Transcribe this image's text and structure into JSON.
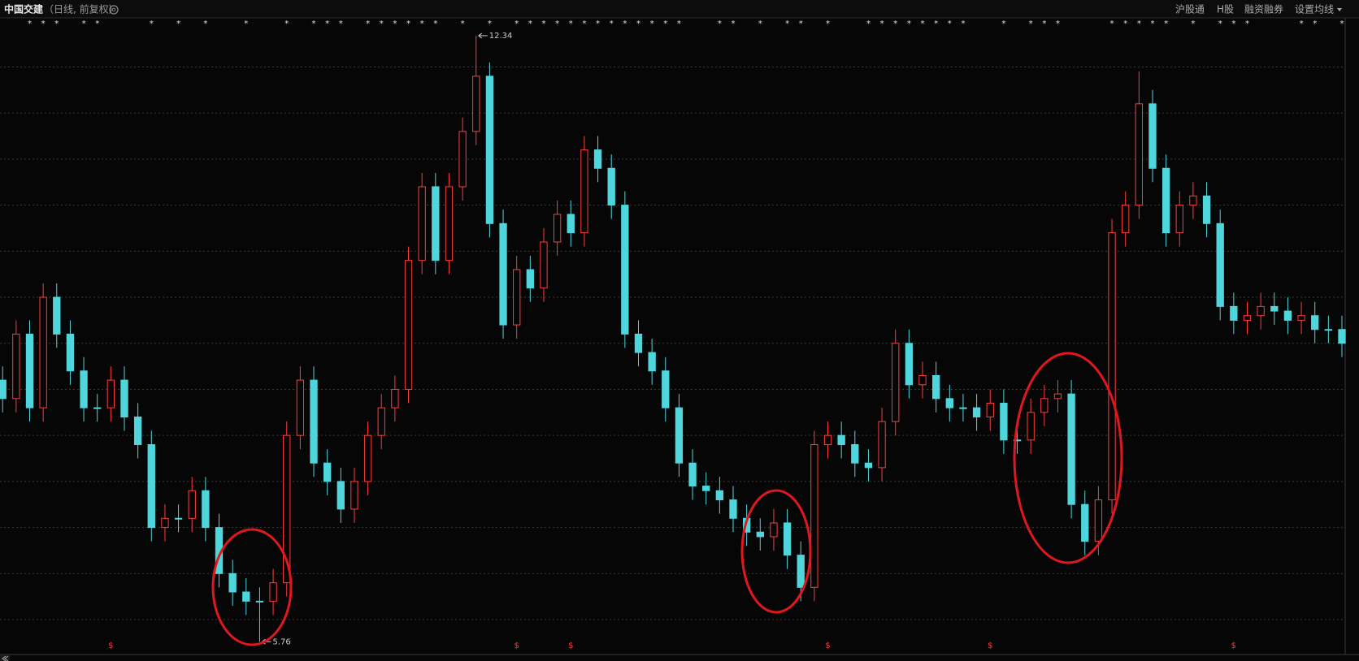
{
  "header": {
    "title": "中国交建",
    "subtitle": "（日线, 前复权）",
    "menu": [
      "沪股通",
      "H股",
      "融资融券",
      "设置均线"
    ]
  },
  "chart_data": {
    "type": "candlestick",
    "open": [
      8.6,
      8.4,
      9.1,
      8.3,
      9.5,
      9.1,
      8.7,
      8.3,
      8.3,
      8.6,
      8.2,
      7.9,
      7.0,
      7.1,
      7.1,
      7.4,
      7.0,
      6.5,
      6.3,
      6.2,
      6.2,
      6.4,
      8.0,
      8.6,
      7.7,
      7.5,
      7.2,
      7.5,
      8.0,
      8.3,
      8.5,
      9.9,
      10.7,
      9.9,
      10.7,
      11.3,
      11.9,
      10.3,
      9.2,
      9.8,
      9.6,
      10.1,
      10.4,
      10.2,
      11.1,
      10.9,
      10.5,
      9.1,
      8.9,
      8.7,
      8.3,
      7.7,
      7.45,
      7.4,
      7.3,
      7.1,
      6.95,
      6.9,
      7.05,
      6.7,
      6.35,
      7.9,
      8.0,
      7.9,
      7.7,
      7.65,
      8.15,
      9.0,
      8.55,
      8.65,
      8.4,
      8.3,
      8.3,
      8.2,
      8.35,
      7.95,
      7.95,
      8.25,
      8.4,
      8.45,
      7.25,
      6.85,
      7.3,
      10.2,
      10.5,
      11.6,
      10.9,
      10.2,
      10.5,
      10.6,
      10.3,
      9.4,
      9.25,
      9.3,
      9.4,
      9.35,
      9.25,
      9.3,
      9.15,
      9.15
    ],
    "high": [
      8.75,
      9.25,
      9.25,
      9.65,
      9.65,
      9.25,
      8.85,
      8.45,
      8.75,
      8.75,
      8.35,
      8.05,
      7.25,
      7.25,
      7.55,
      7.55,
      7.15,
      6.65,
      6.45,
      6.35,
      6.55,
      8.15,
      8.75,
      8.75,
      7.85,
      7.65,
      7.65,
      8.15,
      8.45,
      8.65,
      10.05,
      10.85,
      10.85,
      10.85,
      11.45,
      12.34,
      12.05,
      10.45,
      9.95,
      9.95,
      10.25,
      10.55,
      10.55,
      11.25,
      11.25,
      11.05,
      10.65,
      9.25,
      9.05,
      8.85,
      8.45,
      7.85,
      7.6,
      7.55,
      7.45,
      7.25,
      7.1,
      7.2,
      7.2,
      6.85,
      8.05,
      8.15,
      8.15,
      8.05,
      7.85,
      8.3,
      9.15,
      9.15,
      8.8,
      8.8,
      8.55,
      8.45,
      8.45,
      8.5,
      8.5,
      8.1,
      8.4,
      8.55,
      8.6,
      8.6,
      7.4,
      7.45,
      10.35,
      10.65,
      11.95,
      11.75,
      11.05,
      10.65,
      10.75,
      10.75,
      10.45,
      9.55,
      9.45,
      9.55,
      9.55,
      9.5,
      9.45,
      9.45,
      9.3,
      9.3
    ],
    "low": [
      8.25,
      8.25,
      8.15,
      8.15,
      8.95,
      8.55,
      8.15,
      8.15,
      8.15,
      8.05,
      7.75,
      6.85,
      6.85,
      6.95,
      6.95,
      6.85,
      6.35,
      6.15,
      6.05,
      5.76,
      6.05,
      6.25,
      7.85,
      7.55,
      7.35,
      7.05,
      7.05,
      7.35,
      7.85,
      8.15,
      8.35,
      9.75,
      9.75,
      9.75,
      10.55,
      11.15,
      10.15,
      9.05,
      9.05,
      9.45,
      9.45,
      9.95,
      10.05,
      10.05,
      10.75,
      10.35,
      8.95,
      8.75,
      8.55,
      8.15,
      7.55,
      7.3,
      7.25,
      7.15,
      6.95,
      6.8,
      6.75,
      6.75,
      6.55,
      6.2,
      6.2,
      7.75,
      7.75,
      7.55,
      7.5,
      7.5,
      8.0,
      8.4,
      8.4,
      8.25,
      8.15,
      8.15,
      8.05,
      8.05,
      7.8,
      7.8,
      7.8,
      8.1,
      8.25,
      7.1,
      6.7,
      6.7,
      7.15,
      10.05,
      10.35,
      10.75,
      10.05,
      10.05,
      10.35,
      10.15,
      9.25,
      9.1,
      9.1,
      9.15,
      9.2,
      9.1,
      9.1,
      9.0,
      9.0,
      8.85
    ],
    "close": [
      8.4,
      9.1,
      8.3,
      9.5,
      9.1,
      8.7,
      8.3,
      8.3,
      8.6,
      8.2,
      7.9,
      7.0,
      7.1,
      7.1,
      7.4,
      7.0,
      6.5,
      6.3,
      6.2,
      6.2,
      6.4,
      8.0,
      8.6,
      7.7,
      7.5,
      7.2,
      7.5,
      8.0,
      8.3,
      8.5,
      9.9,
      10.7,
      9.9,
      10.7,
      11.3,
      11.9,
      10.3,
      9.2,
      9.8,
      9.6,
      10.1,
      10.4,
      10.2,
      11.1,
      10.9,
      10.5,
      9.1,
      8.9,
      8.7,
      8.3,
      7.7,
      7.45,
      7.4,
      7.3,
      7.1,
      6.95,
      6.9,
      7.05,
      6.7,
      6.35,
      7.9,
      8.0,
      7.9,
      7.7,
      7.65,
      8.15,
      9.0,
      8.55,
      8.65,
      8.4,
      8.3,
      8.3,
      8.2,
      8.35,
      7.95,
      7.95,
      8.25,
      8.4,
      8.45,
      7.25,
      6.85,
      7.3,
      10.2,
      10.5,
      11.6,
      10.9,
      10.2,
      10.5,
      10.6,
      10.3,
      9.4,
      9.25,
      9.3,
      9.4,
      9.35,
      9.25,
      9.3,
      9.15,
      9.15,
      9.0
    ],
    "up_color": "#ff3c3c",
    "down_color": "#4fd6dc",
    "ylim": [
      5.63,
      12.52
    ],
    "ygrid": [
      6.0,
      6.5,
      7.0,
      7.5,
      8.0,
      8.5,
      9.0,
      9.5,
      10.0,
      10.5,
      11.0,
      11.5,
      12.0
    ],
    "grid": true,
    "annotations": {
      "high": 12.34,
      "low": 5.76
    },
    "top_markers": [
      null,
      null,
      "*",
      "*",
      "*",
      null,
      "*",
      "*",
      null,
      null,
      null,
      "*",
      null,
      "*",
      null,
      "*",
      null,
      null,
      "*",
      null,
      null,
      "*",
      null,
      "*",
      "*",
      "*",
      null,
      "*",
      "*",
      "*",
      "*",
      "*",
      "*",
      null,
      "*",
      null,
      "*",
      null,
      "*",
      "*",
      "*",
      "*",
      "*",
      "*",
      "*",
      "*",
      "*",
      "*",
      "*",
      "*",
      "*",
      null,
      null,
      "*",
      "*",
      null,
      "*",
      null,
      "*",
      "*",
      null,
      "*",
      null,
      null,
      "*",
      "*",
      "*",
      "*",
      "*",
      "*",
      "*",
      "*",
      null,
      null,
      "*",
      null,
      "*",
      "*",
      "*",
      null,
      null,
      null,
      "*",
      "*",
      "*",
      "*",
      "*",
      null,
      "*",
      null,
      "*",
      "*",
      "*",
      null,
      null,
      null,
      "*",
      "*",
      null,
      "*"
    ],
    "bottom_markers": [
      null,
      null,
      null,
      null,
      null,
      null,
      null,
      null,
      "$",
      null,
      null,
      null,
      null,
      null,
      null,
      null,
      null,
      null,
      null,
      null,
      null,
      null,
      null,
      null,
      null,
      null,
      null,
      null,
      null,
      null,
      null,
      null,
      null,
      null,
      null,
      null,
      null,
      null,
      "$",
      null,
      null,
      null,
      "$",
      null,
      null,
      null,
      null,
      null,
      null,
      null,
      null,
      null,
      null,
      null,
      null,
      null,
      null,
      null,
      null,
      null,
      null,
      "$",
      null,
      null,
      null,
      null,
      null,
      null,
      null,
      null,
      null,
      null,
      null,
      "$",
      null,
      null,
      null,
      null,
      null,
      null,
      null,
      null,
      null,
      null,
      null,
      null,
      null,
      null,
      null,
      null,
      null,
      "$",
      null,
      null,
      null,
      null,
      null,
      null,
      null,
      null
    ]
  }
}
